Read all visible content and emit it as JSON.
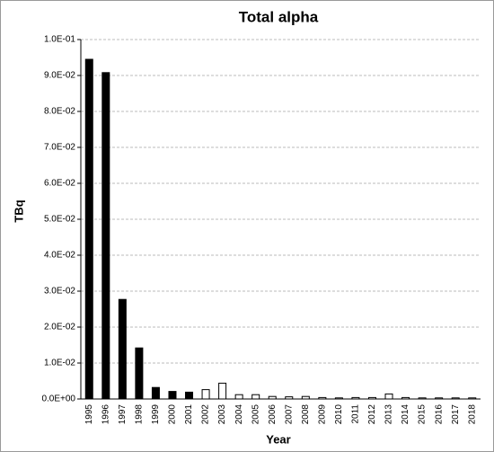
{
  "chart_data": {
    "type": "bar",
    "title": "Total alpha",
    "xlabel": "Year",
    "ylabel": "TBq",
    "categories": [
      "1995",
      "1996",
      "1997",
      "1998",
      "1999",
      "2000",
      "2001",
      "2002",
      "2003",
      "2004",
      "2005",
      "2006",
      "2007",
      "2008",
      "2009",
      "2010",
      "2011",
      "2012",
      "2013",
      "2014",
      "2015",
      "2016",
      "2017",
      "2018"
    ],
    "values": [
      0.0945,
      0.0908,
      0.0277,
      0.0142,
      0.0032,
      0.0021,
      0.0019,
      0.0026,
      0.0044,
      0.0012,
      0.0012,
      0.0007,
      0.0006,
      0.0007,
      0.0004,
      0.0003,
      0.0004,
      0.0004,
      0.0014,
      0.0004,
      0.0003,
      0.0003,
      0.0003,
      0.0003
    ],
    "colors": [
      "#000000",
      "#000000",
      "#000000",
      "#000000",
      "#000000",
      "#000000",
      "#000000",
      "#ffffff",
      "#ffffff",
      "#ffffff",
      "#ffffff",
      "#ffffff",
      "#ffffff",
      "#ffffff",
      "#ffffff",
      "#ffffff",
      "#ffffff",
      "#ffffff",
      "#ffffff",
      "#ffffff",
      "#ffffff",
      "#ffffff",
      "#ffffff",
      "#ffffff"
    ],
    "ylim": [
      0,
      0.1
    ],
    "yticks": [
      {
        "value": 0,
        "label": "0.0E+00"
      },
      {
        "value": 0.01,
        "label": "1.0E-02"
      },
      {
        "value": 0.02,
        "label": "2.0E-02"
      },
      {
        "value": 0.03,
        "label": "3.0E-02"
      },
      {
        "value": 0.04,
        "label": "4.0E-02"
      },
      {
        "value": 0.05,
        "label": "5.0E-02"
      },
      {
        "value": 0.06,
        "label": "6.0E-02"
      },
      {
        "value": 0.07,
        "label": "7.0E-02"
      },
      {
        "value": 0.08,
        "label": "8.0E-02"
      },
      {
        "value": 0.09,
        "label": "9.0E-02"
      },
      {
        "value": 0.1,
        "label": "1.0E-01"
      }
    ],
    "grid": true
  }
}
